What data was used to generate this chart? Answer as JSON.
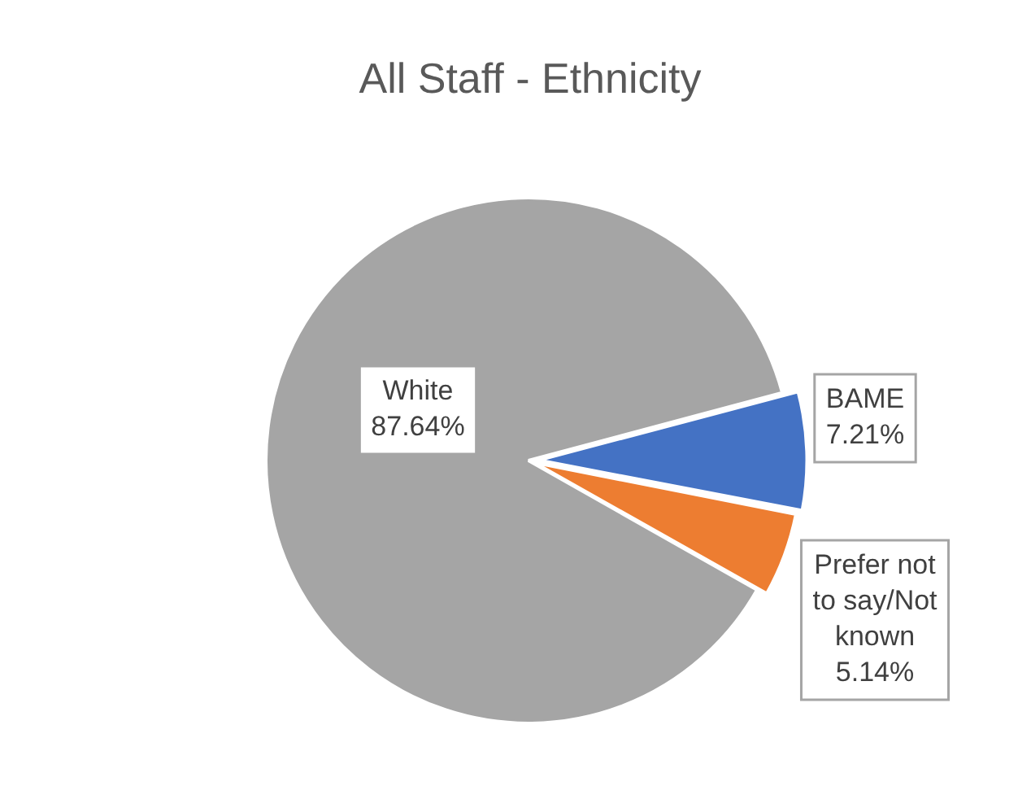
{
  "chart_data": {
    "type": "pie",
    "title": "All Staff - Ethnicity",
    "categories": [
      "White",
      "BAME",
      "Prefer not to say/Not known"
    ],
    "values": [
      87.64,
      7.21,
      5.14
    ],
    "colors": [
      "#a5a5a5",
      "#4472c4",
      "#ed7d31"
    ],
    "value_labels": [
      "87.64%",
      "7.21%",
      "5.14%"
    ],
    "legend": false
  }
}
